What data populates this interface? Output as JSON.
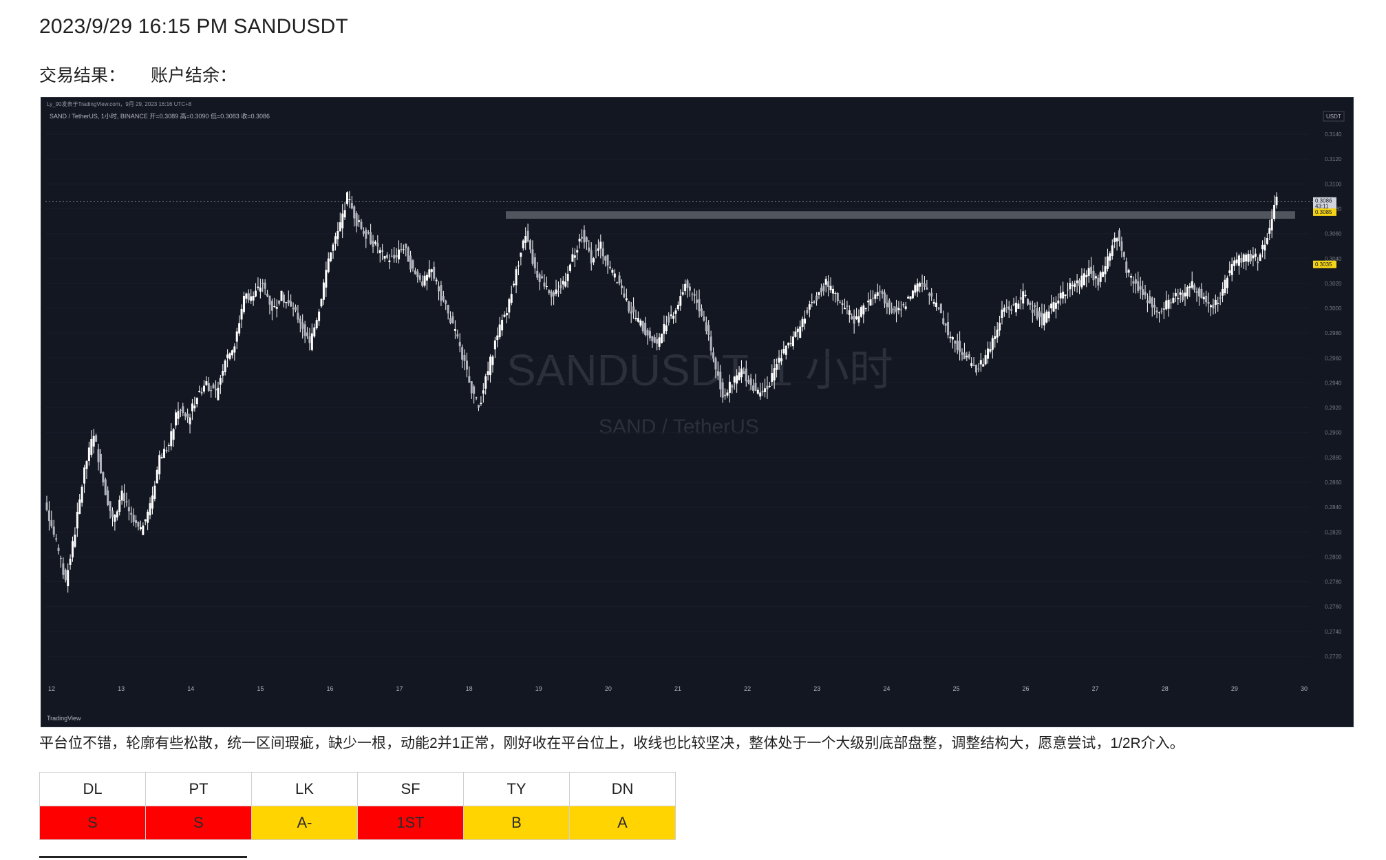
{
  "header": {
    "title": "2023/9/29 16:15 PM SANDUSDT",
    "result_label": "交易结果：",
    "balance_label": "账户结余："
  },
  "chart": {
    "top_info": "Ly_90发表于TradingView.com，9月 29, 2023 16:16 UTC+8",
    "symbol_line": "SAND / TetherUS, 1小时, BINANCE  开=0.3089 高=0.3090 低=0.3083 收=0.3086",
    "watermark_main": "SANDUSDT, 1 小时",
    "watermark_sub": "SAND / TetherUS",
    "currency": "USDT",
    "brand": "TradingView",
    "price_tag_current": "0.3086",
    "price_tag_timer": "43:11",
    "price_tag_yellow1": "0.3085",
    "price_tag_yellow2": "0.3035",
    "colors": {
      "background": "#131722",
      "candle": "#ffffff",
      "zone": "#5d6068",
      "tag_yellow": "#f5d416"
    }
  },
  "chart_data": {
    "type": "line",
    "title": "SANDUSDT, 1 小时",
    "y_ticks": [
      "0.3140",
      "0.3120",
      "0.3100",
      "0.3080",
      "0.3060",
      "0.3040",
      "0.3020",
      "0.3000",
      "0.2980",
      "0.2960",
      "0.2940",
      "0.2920",
      "0.2900",
      "0.2880",
      "0.2860",
      "0.2840",
      "0.2820",
      "0.2800",
      "0.2780",
      "0.2760",
      "0.2740",
      "0.2720"
    ],
    "x_ticks": [
      "12",
      "13",
      "14",
      "15",
      "16",
      "17",
      "18",
      "19",
      "20",
      "21",
      "22",
      "23",
      "24",
      "25",
      "26",
      "27",
      "28",
      "29",
      "30"
    ],
    "ylim": [
      0.271,
      0.315
    ],
    "resistance_zone": [
      0.3072,
      0.3078
    ],
    "series": [
      {
        "values": [
          0.284,
          0.281,
          0.278,
          0.282,
          0.287,
          0.29,
          0.286,
          0.283,
          0.285,
          0.283,
          0.282,
          0.284,
          0.288,
          0.289,
          0.292,
          0.291,
          0.293,
          0.294,
          0.293,
          0.296,
          0.297,
          0.301,
          0.301,
          0.302,
          0.3,
          0.301,
          0.3,
          0.299,
          0.297,
          0.3,
          0.304,
          0.306,
          0.309,
          0.307,
          0.306,
          0.305,
          0.304,
          0.304,
          0.305,
          0.303,
          0.302,
          0.303,
          0.301,
          0.299,
          0.297,
          0.294,
          0.292,
          0.295,
          0.298,
          0.3,
          0.303,
          0.306,
          0.303,
          0.302,
          0.301,
          0.302,
          0.304,
          0.306,
          0.304,
          0.305,
          0.303,
          0.302,
          0.3,
          0.299,
          0.298,
          0.297,
          0.299,
          0.3,
          0.302,
          0.301,
          0.299,
          0.296,
          0.293,
          0.294,
          0.295,
          0.294,
          0.293,
          0.294,
          0.296,
          0.297,
          0.298,
          0.3,
          0.301,
          0.302,
          0.301,
          0.3,
          0.299,
          0.3,
          0.301,
          0.301,
          0.3,
          0.3,
          0.301,
          0.302,
          0.301,
          0.3,
          0.298,
          0.297,
          0.296,
          0.295,
          0.296,
          0.298,
          0.3,
          0.3,
          0.301,
          0.3,
          0.299,
          0.3,
          0.301,
          0.302,
          0.302,
          0.303,
          0.302,
          0.304,
          0.306,
          0.303,
          0.302,
          0.301,
          0.3,
          0.3,
          0.301,
          0.301,
          0.302,
          0.301,
          0.3,
          0.301,
          0.303,
          0.304,
          0.304,
          0.304,
          0.306,
          0.3086
        ]
      }
    ]
  },
  "note": "平台位不错，轮廓有些松散，统一区间瑕疵，缺少一根，动能2并1正常，刚好收在平台位上，收线也比较坚决，整体处于一个大级别底部盘整，调整结构大，愿意尝试，1/2R介入。",
  "scores": {
    "headers": [
      "DL",
      "PT",
      "LK",
      "SF",
      "TY",
      "DN"
    ],
    "values": [
      "S",
      "S",
      "A-",
      "1ST",
      "B",
      "A"
    ],
    "colors": [
      "#ff0000",
      "#ff0000",
      "#ffd400",
      "#ff0000",
      "#ffd400",
      "#ffd400"
    ]
  }
}
